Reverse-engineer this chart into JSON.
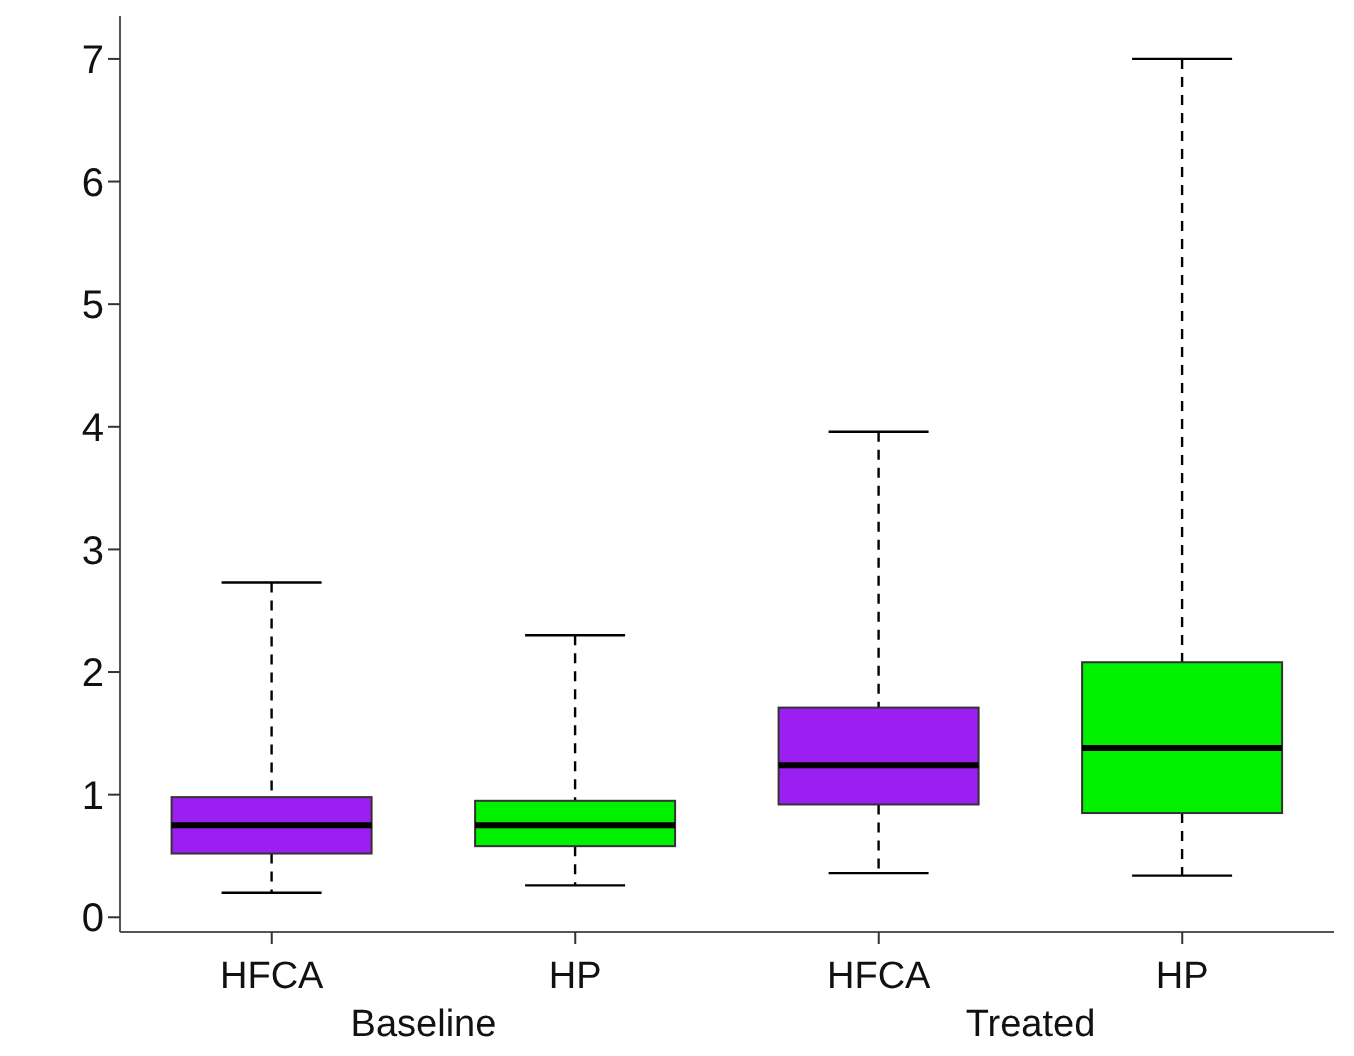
{
  "chart_data": {
    "type": "box",
    "categories": [
      "HFCA",
      "HP",
      "HFCA",
      "HP"
    ],
    "boxes": [
      {
        "low": 0.2,
        "q1": 0.52,
        "median": 0.75,
        "q3": 0.98,
        "high": 2.73
      },
      {
        "low": 0.26,
        "q1": 0.58,
        "median": 0.75,
        "q3": 0.95,
        "high": 2.3
      },
      {
        "low": 0.36,
        "q1": 0.92,
        "median": 1.24,
        "q3": 1.71,
        "high": 3.96
      },
      {
        "low": 0.34,
        "q1": 0.85,
        "median": 1.38,
        "q3": 2.08,
        "high": 7.0
      }
    ],
    "colors": [
      "#9b1ff0",
      "#00f000",
      "#9b1ff0",
      "#00f000"
    ],
    "annotations": [
      "Baseline",
      "Treated"
    ],
    "ylim": [
      -0.12,
      7.35
    ],
    "yticks": [
      0,
      1,
      2,
      3,
      4,
      5,
      6,
      7
    ],
    "grid": false,
    "legend": false
  }
}
